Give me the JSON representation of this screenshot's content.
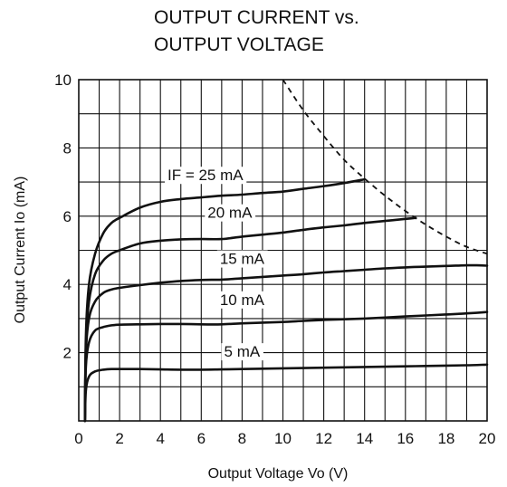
{
  "chart_data": {
    "type": "line",
    "title_line1": "OUTPUT CURRENT vs.",
    "title_line2": "OUTPUT VOLTAGE",
    "xlabel": "Output Voltage  Vo (V)",
    "ylabel": "Output Current  Io (mA)",
    "xlim": [
      0,
      20
    ],
    "ylim": [
      0,
      10
    ],
    "x_ticks": [
      0,
      2,
      4,
      6,
      8,
      10,
      12,
      14,
      16,
      18,
      20
    ],
    "y_ticks": [
      2,
      4,
      6,
      8,
      10
    ],
    "grid": true,
    "series": [
      {
        "name": "IF = 25 mA",
        "label": "IF = 25 mA",
        "label_at": [
          6.2,
          7.05
        ],
        "points": [
          [
            0.3,
            0
          ],
          [
            0.35,
            2.5
          ],
          [
            0.5,
            4.0
          ],
          [
            0.8,
            4.9
          ],
          [
            1.2,
            5.5
          ],
          [
            1.6,
            5.8
          ],
          [
            2,
            5.95
          ],
          [
            3,
            6.25
          ],
          [
            4,
            6.42
          ],
          [
            5,
            6.5
          ],
          [
            6,
            6.55
          ],
          [
            7,
            6.6
          ],
          [
            8,
            6.63
          ],
          [
            9,
            6.68
          ],
          [
            10,
            6.72
          ],
          [
            11,
            6.8
          ],
          [
            12,
            6.88
          ],
          [
            13,
            6.97
          ],
          [
            14,
            7.08
          ]
        ]
      },
      {
        "name": "20 mA",
        "label": "20 mA",
        "label_at": [
          7.4,
          5.95
        ],
        "points": [
          [
            0.3,
            0
          ],
          [
            0.35,
            2.2
          ],
          [
            0.5,
            3.5
          ],
          [
            0.8,
            4.3
          ],
          [
            1.2,
            4.7
          ],
          [
            1.6,
            4.9
          ],
          [
            2,
            5.0
          ],
          [
            3,
            5.2
          ],
          [
            4,
            5.28
          ],
          [
            5,
            5.32
          ],
          [
            6,
            5.33
          ],
          [
            7,
            5.33
          ],
          [
            8,
            5.4
          ],
          [
            9,
            5.46
          ],
          [
            10,
            5.52
          ],
          [
            11,
            5.6
          ],
          [
            12,
            5.67
          ],
          [
            13,
            5.73
          ],
          [
            14,
            5.8
          ],
          [
            15,
            5.86
          ],
          [
            16,
            5.92
          ],
          [
            16.5,
            5.95
          ]
        ]
      },
      {
        "name": "15 mA",
        "label": "15 mA",
        "label_at": [
          8.0,
          4.6
        ],
        "points": [
          [
            0.3,
            0
          ],
          [
            0.35,
            2.0
          ],
          [
            0.5,
            3.0
          ],
          [
            0.8,
            3.5
          ],
          [
            1.2,
            3.75
          ],
          [
            1.6,
            3.85
          ],
          [
            2,
            3.9
          ],
          [
            3,
            3.98
          ],
          [
            4,
            4.05
          ],
          [
            5,
            4.1
          ],
          [
            6,
            4.13
          ],
          [
            7,
            4.14
          ],
          [
            8,
            4.18
          ],
          [
            9,
            4.22
          ],
          [
            10,
            4.26
          ],
          [
            11,
            4.3
          ],
          [
            12,
            4.35
          ],
          [
            13,
            4.39
          ],
          [
            14,
            4.43
          ],
          [
            15,
            4.47
          ],
          [
            16,
            4.5
          ],
          [
            17,
            4.52
          ],
          [
            18,
            4.54
          ],
          [
            19,
            4.56
          ],
          [
            19.5,
            4.56
          ],
          [
            20,
            4.55
          ]
        ]
      },
      {
        "name": "10 mA",
        "label": "10 mA",
        "label_at": [
          8.0,
          3.4
        ],
        "points": [
          [
            0.3,
            0
          ],
          [
            0.35,
            1.6
          ],
          [
            0.5,
            2.3
          ],
          [
            0.8,
            2.65
          ],
          [
            1.2,
            2.75
          ],
          [
            1.6,
            2.8
          ],
          [
            2,
            2.82
          ],
          [
            3,
            2.83
          ],
          [
            4,
            2.84
          ],
          [
            5,
            2.84
          ],
          [
            6,
            2.83
          ],
          [
            7,
            2.83
          ],
          [
            8,
            2.86
          ],
          [
            9,
            2.88
          ],
          [
            10,
            2.9
          ],
          [
            11,
            2.93
          ],
          [
            12,
            2.96
          ],
          [
            13,
            2.98
          ],
          [
            14,
            3.0
          ],
          [
            15,
            3.03
          ],
          [
            16,
            3.06
          ],
          [
            17,
            3.09
          ],
          [
            18,
            3.12
          ],
          [
            19,
            3.15
          ],
          [
            20,
            3.19
          ]
        ]
      },
      {
        "name": "5 mA",
        "label": "5 mA",
        "label_at": [
          8.0,
          1.88
        ],
        "points": [
          [
            0.3,
            0
          ],
          [
            0.35,
            0.9
          ],
          [
            0.5,
            1.3
          ],
          [
            0.8,
            1.45
          ],
          [
            1.2,
            1.5
          ],
          [
            1.6,
            1.52
          ],
          [
            2,
            1.52
          ],
          [
            3,
            1.52
          ],
          [
            4,
            1.51
          ],
          [
            5,
            1.5
          ],
          [
            6,
            1.5
          ],
          [
            7,
            1.51
          ],
          [
            8,
            1.52
          ],
          [
            9,
            1.53
          ],
          [
            10,
            1.54
          ],
          [
            11,
            1.55
          ],
          [
            12,
            1.56
          ],
          [
            13,
            1.57
          ],
          [
            14,
            1.58
          ],
          [
            15,
            1.59
          ],
          [
            16,
            1.6
          ],
          [
            17,
            1.61
          ],
          [
            18,
            1.62
          ],
          [
            19,
            1.63
          ],
          [
            20,
            1.65
          ]
        ]
      }
    ],
    "limit_curve": {
      "style": "dashed",
      "points": [
        [
          10,
          10
        ],
        [
          11,
          9.1
        ],
        [
          12,
          8.35
        ],
        [
          13,
          7.65
        ],
        [
          14,
          7.1
        ],
        [
          15,
          6.6
        ],
        [
          16,
          6.15
        ],
        [
          17,
          5.75
        ],
        [
          18,
          5.4
        ],
        [
          19,
          5.1
        ],
        [
          20,
          4.9
        ]
      ]
    }
  }
}
